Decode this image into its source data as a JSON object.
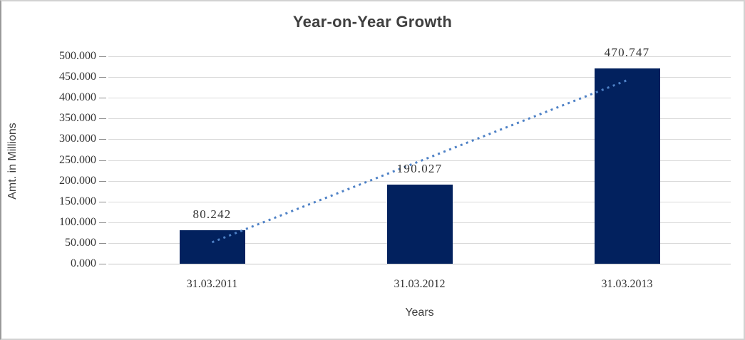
{
  "figure": {
    "title": "Year-on-Year Growth"
  },
  "chart_data": {
    "type": "bar",
    "title": "Year-on-Year Growth",
    "categories": [
      "31.03.2011",
      "31.03.2012",
      "31.03.2013"
    ],
    "values": [
      80.242,
      190.027,
      470.747
    ],
    "data_labels": [
      "80.242",
      "190.027",
      "470.747"
    ],
    "xlabel": "Years",
    "ylabel": "Amt. in Millions",
    "ylim": [
      0,
      500
    ],
    "ytick_step": 50,
    "ytick_labels": [
      "500.000",
      "450.000",
      "400.000",
      "350.000",
      "300.000",
      "250.000",
      "200.000",
      "150.000",
      "100.000",
      "50.000",
      "0.000"
    ],
    "grid": true,
    "legend": false,
    "trendline": {
      "type": "linear",
      "style": "dotted"
    },
    "colors": {
      "bar": "#02215E",
      "trendline": "#4E81C6",
      "gridline": "#D9D9D9",
      "axis_line": "#C9C9C9",
      "tick_mark": "#8C8C8C",
      "label_text": "#333333",
      "title_text": "#3F3F3F"
    }
  }
}
